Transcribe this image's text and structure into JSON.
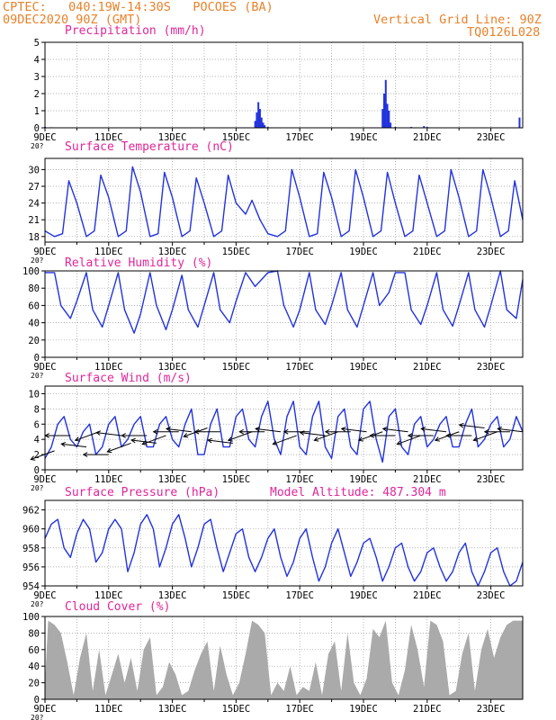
{
  "header": {
    "station": "CPTEC:   040:19W-14:30S   POCOES (BA)",
    "run": "09DEC2020 90Z (GMT)",
    "grid_line": "Vertical Grid Line: 90Z",
    "code": "TQ0126L028"
  },
  "colors": {
    "line": "#2233dd",
    "title": "#e0269a",
    "header": "#e8822a",
    "cloud": "#aaaaaa",
    "grid": "#999999"
  },
  "x_axis": {
    "range": [
      9,
      24
    ],
    "ticks": [
      9,
      11,
      13,
      15,
      17,
      19,
      21,
      23
    ],
    "labels": [
      "9DEC",
      "11DEC",
      "13DEC",
      "15DEC",
      "17DEC",
      "19DEC",
      "21DEC",
      "23DEC"
    ],
    "year_mark": "20?"
  },
  "chart_data": [
    {
      "type": "bar",
      "title": "Precipitation (mm/h)",
      "ylim": [
        0,
        5
      ],
      "yticks": [
        0,
        1,
        2,
        3,
        4,
        5
      ],
      "x": [
        9.0,
        9.2,
        15.6,
        15.65,
        15.7,
        15.75,
        15.8,
        15.85,
        15.9,
        16.0,
        19.6,
        19.65,
        19.7,
        19.75,
        19.8,
        19.85,
        20.0,
        20.5,
        20.9,
        21.0,
        23.9
      ],
      "values": [
        0.05,
        0.03,
        0.4,
        0.9,
        1.5,
        1.1,
        0.6,
        0.3,
        0.15,
        0.05,
        1.1,
        2.0,
        2.8,
        1.4,
        1.0,
        0.3,
        0.05,
        0.05,
        0.1,
        0.05,
        0.6
      ]
    },
    {
      "type": "line",
      "title": "Surface Temperature (nC)",
      "ylim": [
        17,
        32
      ],
      "yticks": [
        18,
        21,
        24,
        27,
        30
      ],
      "x": [
        9.0,
        9.3,
        9.55,
        9.75,
        10.0,
        10.3,
        10.55,
        10.75,
        11.0,
        11.3,
        11.55,
        11.75,
        12.0,
        12.3,
        12.55,
        12.75,
        13.0,
        13.3,
        13.55,
        13.75,
        14.0,
        14.3,
        14.55,
        14.75,
        15.0,
        15.3,
        15.5,
        15.75,
        16.0,
        16.3,
        16.55,
        16.75,
        17.0,
        17.3,
        17.55,
        17.75,
        18.0,
        18.3,
        18.55,
        18.75,
        19.0,
        19.3,
        19.55,
        19.75,
        20.0,
        20.3,
        20.55,
        20.75,
        21.0,
        21.3,
        21.55,
        21.75,
        22.0,
        22.3,
        22.55,
        22.75,
        23.0,
        23.3,
        23.55,
        23.75,
        24.0
      ],
      "values": [
        19,
        18,
        18.5,
        28,
        24,
        18,
        19,
        29,
        25,
        18,
        19,
        30.5,
        26,
        18,
        18.5,
        29.5,
        25,
        18,
        19,
        28.5,
        24,
        18,
        19,
        29,
        24,
        22,
        24.5,
        21,
        18.5,
        18,
        19,
        30,
        25,
        18,
        18.5,
        29.5,
        25,
        18,
        19,
        30,
        25,
        18,
        19,
        29.5,
        24,
        18,
        19,
        29,
        24,
        18,
        19,
        30,
        25,
        18,
        19,
        30,
        25,
        18,
        19,
        28,
        21
      ]
    },
    {
      "type": "line",
      "title": "Relative Humidity (%)",
      "ylim": [
        0,
        100
      ],
      "yticks": [
        0,
        20,
        40,
        60,
        80,
        100
      ],
      "x": [
        9.0,
        9.3,
        9.5,
        9.8,
        10.0,
        10.3,
        10.5,
        10.8,
        11.0,
        11.3,
        11.5,
        11.8,
        12.0,
        12.3,
        12.5,
        12.8,
        13.0,
        13.3,
        13.5,
        13.8,
        14.0,
        14.3,
        14.5,
        14.8,
        15.0,
        15.3,
        15.6,
        15.8,
        16.0,
        16.3,
        16.5,
        16.8,
        17.0,
        17.3,
        17.5,
        17.8,
        18.0,
        18.3,
        18.5,
        18.8,
        19.0,
        19.3,
        19.5,
        19.8,
        20.0,
        20.3,
        20.5,
        20.8,
        21.0,
        21.3,
        21.5,
        21.8,
        22.0,
        22.3,
        22.5,
        22.8,
        23.0,
        23.3,
        23.5,
        23.8,
        24.0
      ],
      "values": [
        98,
        98,
        60,
        45,
        65,
        98,
        55,
        35,
        60,
        98,
        55,
        28,
        50,
        98,
        60,
        32,
        55,
        95,
        55,
        35,
        60,
        98,
        55,
        40,
        65,
        98,
        82,
        90,
        98,
        100,
        60,
        35,
        55,
        98,
        55,
        38,
        60,
        98,
        55,
        35,
        60,
        98,
        60,
        75,
        98,
        98,
        55,
        38,
        60,
        98,
        55,
        36,
        60,
        98,
        55,
        35,
        60,
        100,
        55,
        45,
        90
      ]
    },
    {
      "type": "line",
      "title": "Surface Wind (m/s)",
      "ylim": [
        0,
        11
      ],
      "yticks": [
        0,
        2,
        4,
        6,
        8,
        10
      ],
      "x": [
        9.0,
        9.2,
        9.4,
        9.6,
        9.8,
        10.0,
        10.2,
        10.4,
        10.6,
        10.8,
        11.0,
        11.2,
        11.4,
        11.6,
        11.8,
        12.0,
        12.2,
        12.4,
        12.6,
        12.8,
        13.0,
        13.2,
        13.4,
        13.6,
        13.8,
        14.0,
        14.2,
        14.4,
        14.6,
        14.8,
        15.0,
        15.2,
        15.4,
        15.6,
        15.8,
        16.0,
        16.2,
        16.4,
        16.6,
        16.8,
        17.0,
        17.2,
        17.4,
        17.6,
        17.8,
        18.0,
        18.2,
        18.4,
        18.6,
        18.8,
        19.0,
        19.2,
        19.4,
        19.6,
        19.8,
        20.0,
        20.2,
        20.4,
        20.6,
        20.8,
        21.0,
        21.2,
        21.4,
        21.6,
        21.8,
        22.0,
        22.2,
        22.4,
        22.6,
        22.8,
        23.0,
        23.2,
        23.4,
        23.6,
        23.8,
        24.0
      ],
      "values": [
        1.5,
        3,
        6,
        7,
        4,
        3,
        5,
        6,
        2,
        3,
        6,
        7,
        3,
        4,
        6,
        7,
        3,
        3,
        6,
        7,
        4,
        3,
        6,
        8,
        2,
        2,
        6,
        8,
        3,
        3,
        7,
        8,
        4,
        3,
        7,
        9,
        4,
        2,
        7,
        9,
        3,
        2,
        7,
        9,
        3,
        1.5,
        7,
        8,
        3,
        2,
        8,
        9,
        4,
        1,
        7,
        8,
        3,
        2,
        6,
        7,
        3,
        4,
        6,
        7,
        3,
        3,
        6,
        8,
        3,
        4,
        6,
        7,
        3,
        4,
        7,
        5
      ],
      "arrows_x": [
        9.3,
        9.8,
        10.3,
        10.7,
        11.0,
        11.4,
        11.7,
        12.2,
        12.5,
        12.8,
        13.2,
        13.6,
        14.1,
        14.5,
        14.9,
        15.5,
        15.9,
        16.4,
        16.9,
        17.3,
        17.8,
        18.2,
        18.6,
        19.1,
        19.6,
        20.0,
        20.4,
        20.8,
        21.2,
        21.6,
        22.0,
        22.4,
        22.8,
        23.2,
        23.6,
        24.0
      ],
      "arrows_speed": [
        2.5,
        4.5,
        3,
        5,
        2,
        4.5,
        3.5,
        4.5,
        3.5,
        4.5,
        5,
        5,
        5.5,
        5,
        3.5,
        5,
        5,
        5,
        4.5,
        5,
        4.5,
        5,
        5,
        5,
        5,
        4.5,
        5,
        4.5,
        4.5,
        5,
        5,
        4.5,
        5.5,
        5,
        5,
        5
      ]
    },
    {
      "type": "line",
      "title": "Surface Pressure (hPa)",
      "annotation": "Model Altitude: 487.304 m",
      "ylim": [
        954,
        963
      ],
      "yticks": [
        954,
        956,
        958,
        960,
        962
      ],
      "x": [
        9.0,
        9.2,
        9.4,
        9.6,
        9.8,
        10.0,
        10.2,
        10.4,
        10.6,
        10.8,
        11.0,
        11.2,
        11.4,
        11.6,
        11.8,
        12.0,
        12.2,
        12.4,
        12.6,
        12.8,
        13.0,
        13.2,
        13.4,
        13.6,
        13.8,
        14.0,
        14.2,
        14.4,
        14.6,
        14.8,
        15.0,
        15.2,
        15.4,
        15.6,
        15.8,
        16.0,
        16.2,
        16.4,
        16.6,
        16.8,
        17.0,
        17.2,
        17.4,
        17.6,
        17.8,
        18.0,
        18.2,
        18.4,
        18.6,
        18.8,
        19.0,
        19.2,
        19.4,
        19.6,
        19.8,
        20.0,
        20.2,
        20.4,
        20.6,
        20.8,
        21.0,
        21.2,
        21.4,
        21.6,
        21.8,
        22.0,
        22.2,
        22.4,
        22.6,
        22.8,
        23.0,
        23.2,
        23.4,
        23.6,
        23.8,
        24.0
      ],
      "values": [
        959,
        960.5,
        961,
        958,
        957,
        959.5,
        961,
        960,
        956.5,
        957.5,
        960,
        961,
        960,
        955.5,
        957.5,
        960.5,
        961.5,
        960,
        956,
        958,
        960.5,
        961.5,
        959,
        956,
        958,
        960.5,
        961,
        958,
        955.5,
        957.5,
        959.5,
        960,
        957,
        955.5,
        957,
        959,
        960,
        957,
        955,
        956.5,
        959,
        960,
        957,
        954.5,
        956,
        958.5,
        960,
        957.5,
        955,
        956.5,
        958.5,
        959,
        957,
        954.5,
        956,
        958,
        958.5,
        956,
        954.5,
        955.5,
        957.5,
        958,
        956,
        954.5,
        955.5,
        957.5,
        958.5,
        955.5,
        954,
        955.5,
        957.5,
        958,
        955.5,
        954,
        954.5,
        956.5
      ]
    },
    {
      "type": "area",
      "title": "Cloud Cover (%)",
      "ylim": [
        0,
        100
      ],
      "yticks": [
        0,
        20,
        40,
        60,
        80,
        100
      ],
      "x": [
        9.0,
        9.1,
        9.3,
        9.5,
        9.7,
        9.9,
        10.1,
        10.3,
        10.5,
        10.7,
        10.9,
        11.1,
        11.3,
        11.5,
        11.7,
        11.9,
        12.1,
        12.3,
        12.5,
        12.7,
        12.9,
        13.1,
        13.3,
        13.5,
        13.7,
        13.9,
        14.1,
        14.3,
        14.5,
        14.7,
        14.9,
        15.1,
        15.3,
        15.5,
        15.7,
        15.9,
        16.1,
        16.3,
        16.5,
        16.7,
        16.9,
        17.1,
        17.3,
        17.5,
        17.7,
        17.9,
        18.1,
        18.3,
        18.5,
        18.7,
        18.9,
        19.1,
        19.3,
        19.5,
        19.7,
        19.9,
        20.1,
        20.3,
        20.5,
        20.7,
        20.9,
        21.1,
        21.3,
        21.5,
        21.7,
        21.9,
        22.1,
        22.3,
        22.5,
        22.7,
        22.9,
        23.1,
        23.3,
        23.5,
        23.7,
        23.9,
        24.0
      ],
      "values": [
        20,
        95,
        90,
        80,
        45,
        5,
        50,
        80,
        10,
        60,
        5,
        30,
        55,
        20,
        50,
        10,
        60,
        75,
        5,
        15,
        45,
        30,
        5,
        10,
        35,
        55,
        70,
        10,
        65,
        30,
        5,
        20,
        55,
        95,
        90,
        80,
        5,
        20,
        10,
        40,
        5,
        15,
        10,
        45,
        5,
        55,
        70,
        10,
        80,
        20,
        5,
        25,
        85,
        75,
        95,
        20,
        5,
        35,
        90,
        60,
        15,
        95,
        90,
        70,
        5,
        10,
        55,
        80,
        10,
        60,
        85,
        50,
        75,
        90,
        95,
        95,
        95
      ]
    }
  ]
}
